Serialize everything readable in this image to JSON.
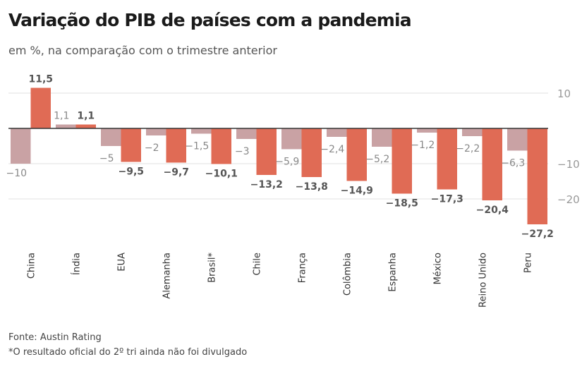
{
  "title": "Variação do PIB de países com a pandemia",
  "subtitle": "em %, na comparação com o trimestre anterior",
  "source": "Fonte: Austin Rating",
  "footnote": "*O resultado oficial do 2º tri ainda não foi divulgado",
  "chart_data": {
    "type": "bar",
    "categories": [
      "China",
      "Índia",
      "EUA",
      "Alemanha",
      "Brasil*",
      "Chile",
      "França",
      "Colômbia",
      "Espanha",
      "México",
      "Reino Unido",
      "Peru"
    ],
    "series": [
      {
        "values": [
          -10,
          1.1,
          -5,
          -2,
          -1.5,
          -3,
          -5.9,
          -2.4,
          -5.2,
          -1.2,
          -2.2,
          -6.3
        ],
        "color": "#c9a2a4"
      },
      {
        "values": [
          11.5,
          1.1,
          -9.5,
          -9.7,
          -10.1,
          -13.2,
          -13.8,
          -14.9,
          -18.5,
          -17.3,
          -20.4,
          -27.2
        ],
        "color": "#e06b55"
      }
    ],
    "yticks": [
      10,
      -10,
      -20
    ],
    "ytick_labels": [
      "10",
      "−10",
      "−20"
    ],
    "grid": true,
    "axis_side": "right"
  }
}
